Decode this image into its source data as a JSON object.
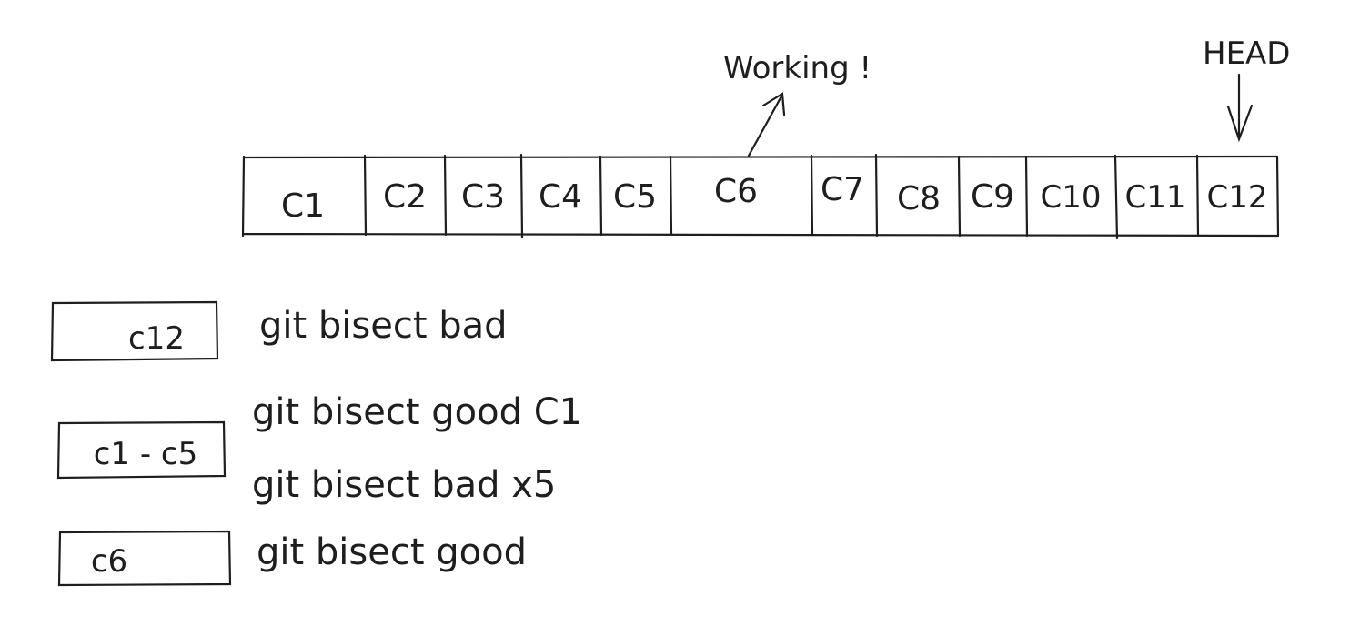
{
  "annotations": {
    "working_label": "Working !",
    "head_label": "HEAD"
  },
  "commits": [
    "C1",
    "C2",
    "C3",
    "C4",
    "C5",
    "C6",
    "C7",
    "C8",
    "C9",
    "C10",
    "C11",
    "C12"
  ],
  "steps": [
    {
      "box": "c12",
      "commands": [
        "git bisect bad"
      ]
    },
    {
      "box": "c1 - c5",
      "commands": [
        "git bisect good C1",
        "git bisect bad x5"
      ]
    },
    {
      "box": "c6",
      "commands": [
        "git bisect good"
      ]
    }
  ],
  "colors": {
    "ink": "#1e1e1e",
    "background": "#ffffff"
  }
}
